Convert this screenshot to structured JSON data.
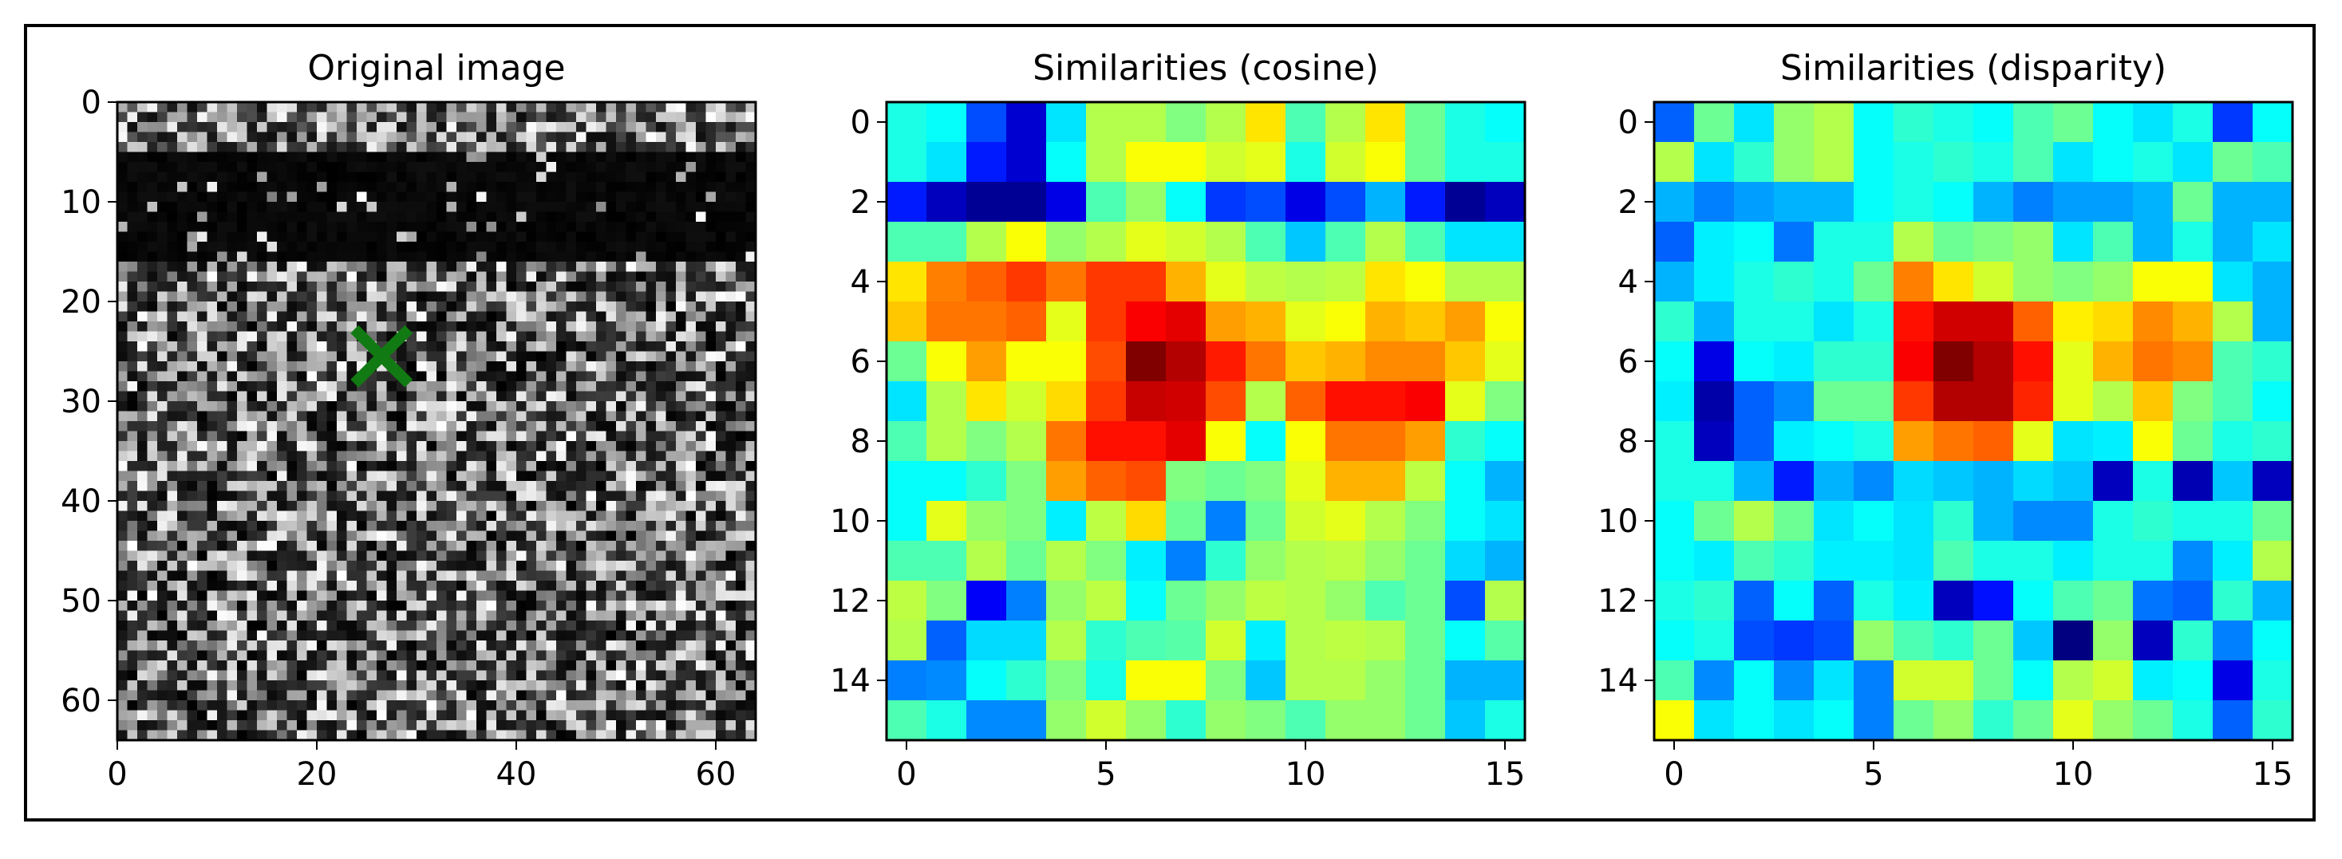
{
  "chart_data": [
    {
      "type": "heatmap",
      "title": "Original image",
      "colormap": "gray",
      "size": 64,
      "xlim": [
        0,
        64
      ],
      "ylim": [
        64,
        0
      ],
      "xticks": [
        0,
        20,
        40,
        60
      ],
      "yticks": [
        0,
        10,
        20,
        30,
        40,
        50,
        60
      ],
      "marker": {
        "symbol": "x",
        "x": 26.5,
        "y": 25.5,
        "color": "#127a12"
      }
    },
    {
      "type": "heatmap",
      "title": "Similarities (cosine)",
      "colormap": "jet",
      "size": 16,
      "xticks": [
        0,
        5,
        10,
        15
      ],
      "yticks": [
        0,
        2,
        4,
        6,
        8,
        10,
        12,
        14
      ],
      "values": [
        [
          0.4,
          0.38,
          0.2,
          0.08,
          0.35,
          0.55,
          0.55,
          0.5,
          0.55,
          0.65,
          0.45,
          0.55,
          0.65,
          0.48,
          0.4,
          0.38
        ],
        [
          0.4,
          0.35,
          0.15,
          0.08,
          0.38,
          0.55,
          0.62,
          0.62,
          0.58,
          0.6,
          0.4,
          0.58,
          0.62,
          0.48,
          0.4,
          0.4
        ],
        [
          0.15,
          0.06,
          0.02,
          0.02,
          0.1,
          0.45,
          0.52,
          0.38,
          0.18,
          0.2,
          0.1,
          0.2,
          0.3,
          0.15,
          0.02,
          0.06
        ],
        [
          0.45,
          0.45,
          0.55,
          0.62,
          0.52,
          0.55,
          0.6,
          0.58,
          0.55,
          0.45,
          0.32,
          0.45,
          0.55,
          0.45,
          0.35,
          0.35
        ],
        [
          0.65,
          0.75,
          0.78,
          0.82,
          0.76,
          0.82,
          0.82,
          0.7,
          0.6,
          0.56,
          0.55,
          0.56,
          0.65,
          0.62,
          0.55,
          0.55
        ],
        [
          0.68,
          0.76,
          0.76,
          0.78,
          0.6,
          0.82,
          0.88,
          0.9,
          0.72,
          0.7,
          0.6,
          0.62,
          0.7,
          0.68,
          0.72,
          0.62
        ],
        [
          0.48,
          0.62,
          0.72,
          0.62,
          0.62,
          0.8,
          1.0,
          0.95,
          0.85,
          0.76,
          0.68,
          0.7,
          0.74,
          0.74,
          0.68,
          0.6
        ],
        [
          0.35,
          0.55,
          0.65,
          0.58,
          0.66,
          0.82,
          0.93,
          0.92,
          0.8,
          0.55,
          0.78,
          0.86,
          0.86,
          0.88,
          0.6,
          0.5
        ],
        [
          0.45,
          0.55,
          0.5,
          0.55,
          0.76,
          0.86,
          0.86,
          0.9,
          0.62,
          0.38,
          0.62,
          0.76,
          0.76,
          0.72,
          0.42,
          0.38
        ],
        [
          0.38,
          0.38,
          0.42,
          0.5,
          0.72,
          0.78,
          0.8,
          0.5,
          0.48,
          0.5,
          0.6,
          0.7,
          0.7,
          0.56,
          0.38,
          0.3
        ],
        [
          0.38,
          0.6,
          0.52,
          0.5,
          0.36,
          0.56,
          0.66,
          0.48,
          0.25,
          0.48,
          0.58,
          0.6,
          0.55,
          0.5,
          0.38,
          0.35
        ],
        [
          0.45,
          0.45,
          0.55,
          0.48,
          0.55,
          0.5,
          0.36,
          0.25,
          0.42,
          0.52,
          0.55,
          0.56,
          0.52,
          0.48,
          0.34,
          0.3
        ],
        [
          0.56,
          0.5,
          0.12,
          0.25,
          0.52,
          0.56,
          0.38,
          0.48,
          0.52,
          0.56,
          0.55,
          0.52,
          0.45,
          0.48,
          0.2,
          0.55
        ],
        [
          0.55,
          0.22,
          0.34,
          0.34,
          0.55,
          0.42,
          0.45,
          0.46,
          0.58,
          0.36,
          0.55,
          0.56,
          0.55,
          0.48,
          0.38,
          0.46
        ],
        [
          0.25,
          0.26,
          0.38,
          0.42,
          0.5,
          0.4,
          0.62,
          0.62,
          0.5,
          0.32,
          0.55,
          0.55,
          0.52,
          0.48,
          0.3,
          0.3
        ],
        [
          0.45,
          0.4,
          0.26,
          0.26,
          0.52,
          0.58,
          0.52,
          0.42,
          0.52,
          0.5,
          0.45,
          0.52,
          0.52,
          0.48,
          0.32,
          0.4
        ]
      ]
    },
    {
      "type": "heatmap",
      "title": "Similarities (disparity)",
      "colormap": "jet",
      "size": 16,
      "xticks": [
        0,
        5,
        10,
        15
      ],
      "yticks": [
        0,
        2,
        4,
        6,
        8,
        10,
        12,
        14
      ],
      "values": [
        [
          0.22,
          0.48,
          0.35,
          0.52,
          0.55,
          0.38,
          0.42,
          0.4,
          0.38,
          0.45,
          0.48,
          0.38,
          0.35,
          0.4,
          0.18,
          0.38
        ],
        [
          0.55,
          0.35,
          0.42,
          0.52,
          0.55,
          0.38,
          0.4,
          0.42,
          0.4,
          0.45,
          0.35,
          0.38,
          0.4,
          0.35,
          0.48,
          0.45
        ],
        [
          0.3,
          0.25,
          0.28,
          0.3,
          0.3,
          0.38,
          0.4,
          0.38,
          0.3,
          0.25,
          0.28,
          0.28,
          0.3,
          0.48,
          0.3,
          0.3
        ],
        [
          0.22,
          0.36,
          0.38,
          0.24,
          0.4,
          0.4,
          0.55,
          0.48,
          0.5,
          0.52,
          0.35,
          0.45,
          0.3,
          0.4,
          0.3,
          0.35
        ],
        [
          0.3,
          0.36,
          0.4,
          0.42,
          0.4,
          0.48,
          0.75,
          0.65,
          0.58,
          0.52,
          0.5,
          0.52,
          0.62,
          0.62,
          0.35,
          0.3
        ],
        [
          0.42,
          0.3,
          0.4,
          0.4,
          0.35,
          0.4,
          0.86,
          0.92,
          0.92,
          0.78,
          0.64,
          0.66,
          0.74,
          0.7,
          0.55,
          0.3
        ],
        [
          0.38,
          0.1,
          0.38,
          0.36,
          0.42,
          0.42,
          0.88,
          1.0,
          0.95,
          0.86,
          0.6,
          0.7,
          0.76,
          0.74,
          0.45,
          0.42
        ],
        [
          0.36,
          0.04,
          0.22,
          0.26,
          0.48,
          0.48,
          0.82,
          0.95,
          0.95,
          0.84,
          0.6,
          0.55,
          0.68,
          0.5,
          0.45,
          0.38
        ],
        [
          0.4,
          0.06,
          0.22,
          0.36,
          0.38,
          0.4,
          0.72,
          0.76,
          0.78,
          0.6,
          0.35,
          0.36,
          0.62,
          0.48,
          0.4,
          0.42
        ],
        [
          0.4,
          0.4,
          0.3,
          0.15,
          0.3,
          0.26,
          0.34,
          0.32,
          0.3,
          0.34,
          0.32,
          0.06,
          0.4,
          0.05,
          0.32,
          0.06
        ],
        [
          0.38,
          0.48,
          0.55,
          0.48,
          0.35,
          0.38,
          0.35,
          0.42,
          0.3,
          0.26,
          0.26,
          0.4,
          0.42,
          0.4,
          0.4,
          0.48
        ],
        [
          0.38,
          0.36,
          0.45,
          0.42,
          0.36,
          0.36,
          0.35,
          0.45,
          0.4,
          0.4,
          0.36,
          0.4,
          0.4,
          0.26,
          0.36,
          0.55
        ],
        [
          0.4,
          0.42,
          0.22,
          0.38,
          0.22,
          0.4,
          0.36,
          0.06,
          0.14,
          0.38,
          0.45,
          0.48,
          0.24,
          0.22,
          0.42,
          0.3
        ],
        [
          0.38,
          0.4,
          0.2,
          0.18,
          0.2,
          0.52,
          0.45,
          0.42,
          0.48,
          0.32,
          0.0,
          0.52,
          0.06,
          0.42,
          0.25,
          0.38
        ],
        [
          0.45,
          0.26,
          0.38,
          0.26,
          0.35,
          0.25,
          0.58,
          0.58,
          0.48,
          0.38,
          0.55,
          0.58,
          0.36,
          0.38,
          0.1,
          0.4
        ],
        [
          0.62,
          0.35,
          0.38,
          0.35,
          0.38,
          0.25,
          0.48,
          0.52,
          0.42,
          0.48,
          0.6,
          0.52,
          0.48,
          0.4,
          0.22,
          0.42
        ]
      ]
    }
  ]
}
